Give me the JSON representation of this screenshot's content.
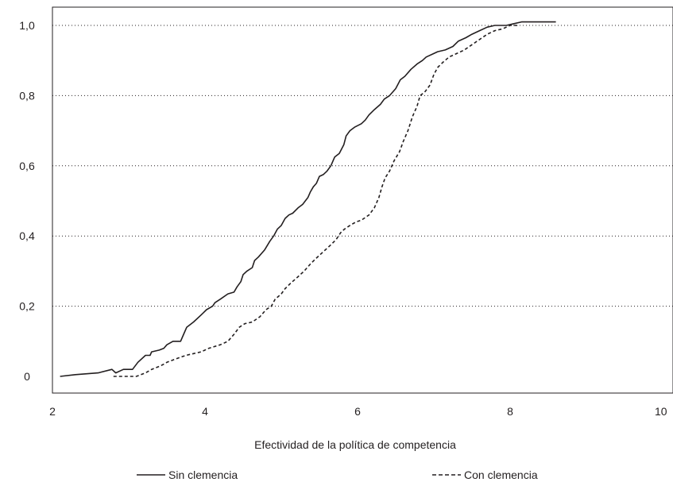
{
  "chart_data": {
    "type": "line",
    "title": "",
    "xlabel": "Efectividad de la política de competencia",
    "ylabel": "",
    "xlim": [
      2,
      10
    ],
    "ylim": [
      0,
      1.0
    ],
    "x_ticks": [
      2,
      4,
      6,
      8,
      10
    ],
    "x_tick_labels": [
      "2",
      "4",
      "6",
      "8",
      "10"
    ],
    "y_ticks": [
      0,
      0.2,
      0.4,
      0.6,
      0.8,
      1.0
    ],
    "y_tick_labels": [
      "0",
      "0,2",
      "0,4",
      "0,6",
      "0,8",
      "1,0"
    ],
    "grid": "horizontal-dotted",
    "legend_position": "bottom",
    "series": [
      {
        "name": "Sin clemencia",
        "style": "solid",
        "color": "#231f20",
        "points": [
          [
            2.1,
            0.0
          ],
          [
            2.3,
            0.005
          ],
          [
            2.6,
            0.01
          ],
          [
            2.78,
            0.02
          ],
          [
            2.83,
            0.01
          ],
          [
            2.93,
            0.02
          ],
          [
            3.05,
            0.02
          ],
          [
            3.12,
            0.04
          ],
          [
            3.22,
            0.06
          ],
          [
            3.28,
            0.06
          ],
          [
            3.3,
            0.07
          ],
          [
            3.4,
            0.075
          ],
          [
            3.46,
            0.08
          ],
          [
            3.5,
            0.09
          ],
          [
            3.58,
            0.1
          ],
          [
            3.68,
            0.1
          ],
          [
            3.72,
            0.12
          ],
          [
            3.76,
            0.14
          ],
          [
            3.85,
            0.155
          ],
          [
            3.95,
            0.175
          ],
          [
            4.02,
            0.19
          ],
          [
            4.1,
            0.2
          ],
          [
            4.13,
            0.21
          ],
          [
            4.2,
            0.22
          ],
          [
            4.3,
            0.235
          ],
          [
            4.38,
            0.24
          ],
          [
            4.42,
            0.255
          ],
          [
            4.47,
            0.27
          ],
          [
            4.5,
            0.29
          ],
          [
            4.55,
            0.3
          ],
          [
            4.62,
            0.31
          ],
          [
            4.65,
            0.33
          ],
          [
            4.7,
            0.34
          ],
          [
            4.78,
            0.36
          ],
          [
            4.85,
            0.385
          ],
          [
            4.9,
            0.4
          ],
          [
            4.95,
            0.42
          ],
          [
            5.0,
            0.43
          ],
          [
            5.05,
            0.45
          ],
          [
            5.1,
            0.46
          ],
          [
            5.15,
            0.465
          ],
          [
            5.22,
            0.48
          ],
          [
            5.28,
            0.49
          ],
          [
            5.35,
            0.51
          ],
          [
            5.38,
            0.525
          ],
          [
            5.42,
            0.54
          ],
          [
            5.46,
            0.55
          ],
          [
            5.5,
            0.57
          ],
          [
            5.55,
            0.575
          ],
          [
            5.6,
            0.585
          ],
          [
            5.65,
            0.6
          ],
          [
            5.7,
            0.625
          ],
          [
            5.76,
            0.635
          ],
          [
            5.82,
            0.66
          ],
          [
            5.85,
            0.685
          ],
          [
            5.9,
            0.7
          ],
          [
            5.96,
            0.71
          ],
          [
            6.05,
            0.72
          ],
          [
            6.1,
            0.73
          ],
          [
            6.15,
            0.745
          ],
          [
            6.22,
            0.76
          ],
          [
            6.3,
            0.775
          ],
          [
            6.35,
            0.79
          ],
          [
            6.42,
            0.8
          ],
          [
            6.5,
            0.82
          ],
          [
            6.56,
            0.845
          ],
          [
            6.62,
            0.855
          ],
          [
            6.7,
            0.875
          ],
          [
            6.78,
            0.89
          ],
          [
            6.85,
            0.9
          ],
          [
            6.9,
            0.91
          ],
          [
            7.0,
            0.92
          ],
          [
            7.05,
            0.925
          ],
          [
            7.15,
            0.93
          ],
          [
            7.25,
            0.94
          ],
          [
            7.32,
            0.955
          ],
          [
            7.42,
            0.965
          ],
          [
            7.5,
            0.975
          ],
          [
            7.6,
            0.985
          ],
          [
            7.7,
            0.995
          ],
          [
            7.8,
            1.0
          ],
          [
            7.95,
            1.0
          ],
          [
            8.05,
            1.005
          ],
          [
            8.15,
            1.01
          ],
          [
            8.6,
            1.01
          ]
        ]
      },
      {
        "name": "Con clemencia",
        "style": "dashed",
        "color": "#231f20",
        "points": [
          [
            2.8,
            0.0
          ],
          [
            3.1,
            0.0
          ],
          [
            3.22,
            0.01
          ],
          [
            3.3,
            0.02
          ],
          [
            3.42,
            0.03
          ],
          [
            3.5,
            0.04
          ],
          [
            3.62,
            0.05
          ],
          [
            3.75,
            0.06
          ],
          [
            3.85,
            0.065
          ],
          [
            3.95,
            0.07
          ],
          [
            4.05,
            0.08
          ],
          [
            4.2,
            0.09
          ],
          [
            4.3,
            0.1
          ],
          [
            4.38,
            0.12
          ],
          [
            4.45,
            0.14
          ],
          [
            4.52,
            0.15
          ],
          [
            4.62,
            0.155
          ],
          [
            4.72,
            0.17
          ],
          [
            4.8,
            0.19
          ],
          [
            4.87,
            0.2
          ],
          [
            4.92,
            0.22
          ],
          [
            5.0,
            0.235
          ],
          [
            5.05,
            0.25
          ],
          [
            5.12,
            0.265
          ],
          [
            5.2,
            0.28
          ],
          [
            5.3,
            0.3
          ],
          [
            5.38,
            0.32
          ],
          [
            5.45,
            0.335
          ],
          [
            5.55,
            0.355
          ],
          [
            5.65,
            0.375
          ],
          [
            5.72,
            0.39
          ],
          [
            5.78,
            0.41
          ],
          [
            5.83,
            0.42
          ],
          [
            5.9,
            0.43
          ],
          [
            5.98,
            0.44
          ],
          [
            6.05,
            0.445
          ],
          [
            6.15,
            0.46
          ],
          [
            6.22,
            0.48
          ],
          [
            6.28,
            0.51
          ],
          [
            6.32,
            0.54
          ],
          [
            6.36,
            0.565
          ],
          [
            6.42,
            0.585
          ],
          [
            6.48,
            0.615
          ],
          [
            6.55,
            0.64
          ],
          [
            6.6,
            0.67
          ],
          [
            6.66,
            0.7
          ],
          [
            6.72,
            0.74
          ],
          [
            6.78,
            0.77
          ],
          [
            6.82,
            0.8
          ],
          [
            6.88,
            0.81
          ],
          [
            6.95,
            0.83
          ],
          [
            7.0,
            0.86
          ],
          [
            7.05,
            0.88
          ],
          [
            7.12,
            0.895
          ],
          [
            7.2,
            0.91
          ],
          [
            7.3,
            0.92
          ],
          [
            7.4,
            0.93
          ],
          [
            7.5,
            0.945
          ],
          [
            7.6,
            0.96
          ],
          [
            7.7,
            0.975
          ],
          [
            7.8,
            0.985
          ],
          [
            7.9,
            0.99
          ],
          [
            8.0,
            1.0
          ],
          [
            8.1,
            1.0
          ]
        ]
      }
    ]
  }
}
